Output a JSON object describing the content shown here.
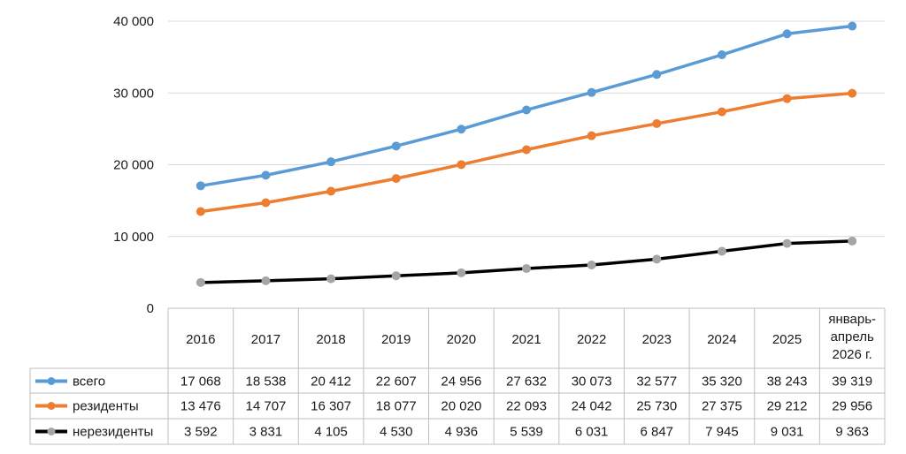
{
  "chart_data": {
    "type": "line",
    "title": "",
    "xlabel": "",
    "ylabel": "",
    "ylim": [
      0,
      40000
    ],
    "yticks": [
      0,
      10000,
      20000,
      30000,
      40000
    ],
    "ytick_labels": [
      "0",
      "10 000",
      "20 000",
      "30 000",
      "40 000"
    ],
    "grid": true,
    "legend": "data-table",
    "categories": [
      "2016",
      "2017",
      "2018",
      "2019",
      "2020",
      "2021",
      "2022",
      "2023",
      "2024",
      "2025",
      "январь-апрель 2026 г."
    ],
    "category_lines": [
      [
        "2016"
      ],
      [
        "2017"
      ],
      [
        "2018"
      ],
      [
        "2019"
      ],
      [
        "2020"
      ],
      [
        "2021"
      ],
      [
        "2022"
      ],
      [
        "2023"
      ],
      [
        "2024"
      ],
      [
        "2025"
      ],
      [
        "январь-",
        "апрель",
        "2026 г."
      ]
    ],
    "series": [
      {
        "name": "всего",
        "color": "#5b9bd5",
        "marker_color": "#5b9bd5",
        "values": [
          17068,
          18538,
          20412,
          22607,
          24956,
          27632,
          30073,
          32577,
          35320,
          38243,
          39319
        ],
        "labels": [
          "17 068",
          "18 538",
          "20 412",
          "22 607",
          "24 956",
          "27 632",
          "30 073",
          "32 577",
          "35 320",
          "38 243",
          "39 319"
        ]
      },
      {
        "name": "резиденты",
        "color": "#ed7d31",
        "marker_color": "#ed7d31",
        "values": [
          13476,
          14707,
          16307,
          18077,
          20020,
          22093,
          24042,
          25730,
          27375,
          29212,
          29956
        ],
        "labels": [
          "13 476",
          "14 707",
          "16 307",
          "18 077",
          "20 020",
          "22 093",
          "24 042",
          "25 730",
          "27 375",
          "29 212",
          "29 956"
        ]
      },
      {
        "name": "нерезиденты",
        "color": "#000000",
        "marker_color": "#a5a5a5",
        "values": [
          3592,
          3831,
          4105,
          4530,
          4936,
          5539,
          6031,
          6847,
          7945,
          9031,
          9363
        ],
        "labels": [
          "3 592",
          "3 831",
          "4 105",
          "4 530",
          "4 936",
          "5 539",
          "6 031",
          "6 847",
          "7 945",
          "9 031",
          "9 363"
        ]
      }
    ]
  }
}
